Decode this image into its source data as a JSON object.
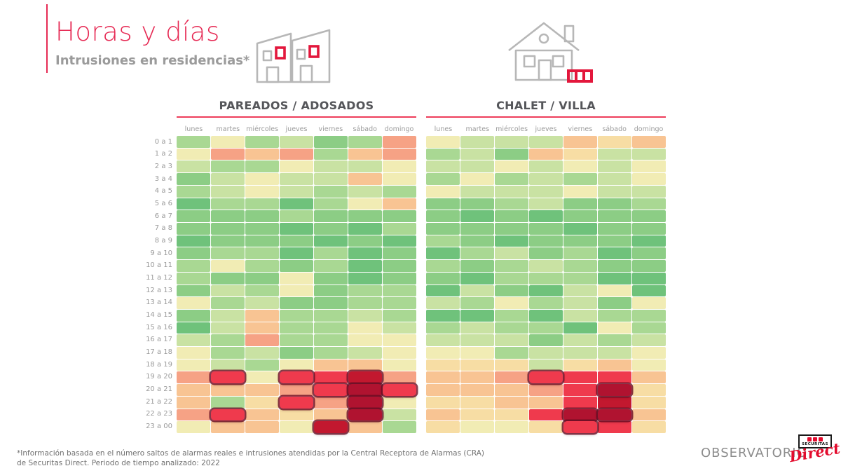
{
  "page": {
    "title": "Horas y días",
    "subtitle": "Intrusiones en residencias*",
    "footnote_lines": [
      "*Información basada en el número saltos de alarmas reales e intrusiones atendidas por la Central Receptora de Alarmas (CRA)",
      "de Securitas Direct. Periodo de tiempo analizado: 2022"
    ],
    "brand": {
      "observatorio": "OBSERVATORIO",
      "logo_top": "SECURITAS",
      "logo_script": "Direct"
    }
  },
  "colors": {
    "accent": "#e62a54",
    "rule": "#ee3d5a",
    "chart_title_gray": "#55565a",
    "label_gray": "#9b9b9b",
    "icon_gray": "#b7b7b7",
    "icon_red": "#e3173c",
    "highlight_border": "#690c22",
    "heat_palette": [
      "#6fc27b",
      "#8ccd85",
      "#a9d893",
      "#c9e2a3",
      "#f1ecb4",
      "#f7dda4",
      "#f8c493",
      "#f6a285",
      "#ef3a4d",
      "#c2182f",
      "#b01330"
    ]
  },
  "chart_data": [
    {
      "type": "heatmap",
      "title": "PAREADOS / ADOSADOS",
      "columns": [
        "lunes",
        "martes",
        "miércoles",
        "jueves",
        "viernes",
        "sábado",
        "domingo"
      ],
      "rows": [
        "0 a 1",
        "1 a 2",
        "2 a 3",
        "3 a 4",
        "4 a 5",
        "5 a 6",
        "6 a 7",
        "7 a 8",
        "8 a 9",
        "9 a 10",
        "10 a 11",
        "11 a 12",
        "12 a 13",
        "13 a 14",
        "14 a 15",
        "15 a 16",
        "16 a 17",
        "17 a 18",
        "18 a 19",
        "19 a 20",
        "20 a 21",
        "21 a 22",
        "22 a 23",
        "23 a 00"
      ],
      "scale_note": "Relative intrusion intensity, 0 = lowest (green) to 10 = highest (dark red); no numeric labels shown in source",
      "values": [
        [
          2,
          4,
          2,
          3,
          1,
          2,
          7
        ],
        [
          4,
          7,
          6,
          7,
          2,
          6,
          7
        ],
        [
          3,
          2,
          2,
          4,
          3,
          3,
          4
        ],
        [
          1,
          3,
          4,
          3,
          3,
          6,
          4
        ],
        [
          2,
          3,
          4,
          3,
          2,
          3,
          2
        ],
        [
          0,
          2,
          2,
          0,
          2,
          4,
          6
        ],
        [
          1,
          1,
          1,
          2,
          1,
          1,
          1
        ],
        [
          1,
          1,
          1,
          0,
          1,
          0,
          2
        ],
        [
          0,
          1,
          1,
          1,
          0,
          1,
          0
        ],
        [
          1,
          2,
          2,
          0,
          2,
          0,
          1
        ],
        [
          2,
          4,
          2,
          1,
          2,
          0,
          1
        ],
        [
          2,
          1,
          1,
          4,
          1,
          0,
          1
        ],
        [
          1,
          3,
          2,
          4,
          1,
          2,
          2
        ],
        [
          4,
          2,
          3,
          1,
          1,
          2,
          2
        ],
        [
          1,
          3,
          6,
          2,
          2,
          3,
          2
        ],
        [
          0,
          3,
          6,
          2,
          2,
          4,
          3
        ],
        [
          3,
          2,
          7,
          2,
          2,
          4,
          4
        ],
        [
          4,
          2,
          3,
          1,
          2,
          3,
          4
        ],
        [
          4,
          3,
          2,
          4,
          6,
          6,
          4
        ],
        [
          7,
          8,
          4,
          8,
          8,
          9,
          7
        ],
        [
          6,
          6,
          6,
          7,
          8,
          10,
          8
        ],
        [
          6,
          2,
          5,
          8,
          7,
          10,
          4
        ],
        [
          7,
          8,
          6,
          5,
          6,
          10,
          3
        ],
        [
          4,
          6,
          6,
          4,
          9,
          6,
          2
        ]
      ],
      "highlights": [
        [
          19,
          1
        ],
        [
          19,
          3
        ],
        [
          19,
          5
        ],
        [
          20,
          4
        ],
        [
          20,
          5
        ],
        [
          20,
          6
        ],
        [
          21,
          3
        ],
        [
          21,
          5
        ],
        [
          22,
          1
        ],
        [
          22,
          5
        ],
        [
          23,
          4
        ]
      ]
    },
    {
      "type": "heatmap",
      "title": "CHALET / VILLA",
      "columns": [
        "lunes",
        "martes",
        "miércoles",
        "jueves",
        "viernes",
        "sábado",
        "domingo"
      ],
      "rows": [
        "0 a 1",
        "1 a 2",
        "2 a 3",
        "3 a 4",
        "4 a 5",
        "5 a 6",
        "6 a 7",
        "7 a 8",
        "8 a 9",
        "9 a 10",
        "10 a 11",
        "11 a 12",
        "12 a 13",
        "13 a 14",
        "14 a 15",
        "15 a 16",
        "16 a 17",
        "17 a 18",
        "18 a 19",
        "19 a 20",
        "20 a 21",
        "21 a 22",
        "22 a 23",
        "23 a 00"
      ],
      "scale_note": "Relative intrusion intensity, 0 = lowest (green) to 10 = highest (dark red); no numeric labels shown in source",
      "values": [
        [
          4,
          3,
          3,
          3,
          6,
          5,
          6
        ],
        [
          2,
          3,
          1,
          6,
          5,
          3,
          3
        ],
        [
          3,
          3,
          4,
          3,
          4,
          3,
          4
        ],
        [
          2,
          4,
          2,
          3,
          2,
          3,
          4
        ],
        [
          4,
          3,
          3,
          3,
          4,
          3,
          3
        ],
        [
          1,
          1,
          2,
          3,
          1,
          1,
          2
        ],
        [
          1,
          0,
          1,
          0,
          1,
          1,
          1
        ],
        [
          1,
          1,
          1,
          1,
          0,
          1,
          1
        ],
        [
          2,
          1,
          0,
          1,
          1,
          1,
          0
        ],
        [
          0,
          2,
          3,
          1,
          2,
          0,
          1
        ],
        [
          2,
          1,
          2,
          3,
          2,
          1,
          1
        ],
        [
          1,
          0,
          2,
          2,
          2,
          0,
          0
        ],
        [
          0,
          3,
          1,
          0,
          3,
          4,
          0
        ],
        [
          3,
          2,
          4,
          2,
          3,
          1,
          4
        ],
        [
          0,
          0,
          2,
          0,
          3,
          2,
          2
        ],
        [
          2,
          3,
          2,
          2,
          0,
          4,
          2
        ],
        [
          3,
          3,
          3,
          1,
          3,
          2,
          3
        ],
        [
          4,
          4,
          2,
          3,
          3,
          3,
          4
        ],
        [
          5,
          5,
          5,
          3,
          5,
          6,
          4
        ],
        [
          6,
          6,
          7,
          8,
          8,
          8,
          6
        ],
        [
          6,
          6,
          6,
          7,
          8,
          10,
          5
        ],
        [
          5,
          5,
          6,
          6,
          8,
          9,
          5
        ],
        [
          6,
          5,
          5,
          8,
          10,
          10,
          6
        ],
        [
          5,
          4,
          4,
          5,
          8,
          8,
          5
        ]
      ],
      "highlights": [
        [
          19,
          3
        ],
        [
          20,
          5
        ],
        [
          22,
          4
        ],
        [
          22,
          5
        ],
        [
          23,
          4
        ]
      ]
    }
  ]
}
